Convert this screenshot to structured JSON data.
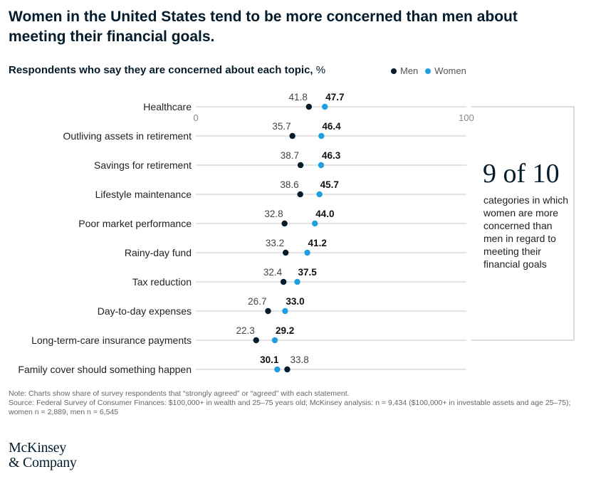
{
  "title": "Women in the United States tend to be more concerned than men about meeting their financial goals.",
  "subtitle": "Respondents who say they are concerned about each topic,",
  "subtitle_unit": "%",
  "legend": {
    "men": "Men",
    "women": "Women"
  },
  "colors": {
    "men": "#051c2c",
    "women": "#1f9fe0",
    "grid": "#c8c8c8",
    "axis": "#888888"
  },
  "callout": {
    "number": "9 of 10",
    "text": "categories in which women are more concerned than men in regard to meeting their financial goals"
  },
  "footnote": {
    "note": "Note: Charts show share of survey respondents that “strongly agreed” or “agreed” with each statement.",
    "source": "Source: Federal Survey of Consumer Finances: $100,000+ in wealth and 25–75 years old; McKinsey analysis: n = 9,434 ($100,000+ in investable assets and age 25–75); women n = 2,889, men n = 6,545"
  },
  "logo": {
    "line1": "McKinsey",
    "line2": "& Company"
  },
  "chart_data": {
    "type": "dot-plot",
    "title": "Respondents who say they are concerned about each topic, %",
    "xlim": [
      0,
      100
    ],
    "x_ticks": [
      "0",
      "100"
    ],
    "categories": [
      "Healthcare",
      "Outliving assets in retirement",
      "Savings for retirement",
      "Lifestyle maintenance",
      "Poor market performance",
      "Rainy-day fund",
      "Tax reduction",
      "Day-to-day expenses",
      "Long-term-care insurance payments",
      "Family cover should something happen"
    ],
    "series": [
      {
        "name": "Men",
        "values": [
          41.8,
          35.7,
          38.7,
          38.6,
          32.8,
          33.2,
          32.4,
          26.7,
          22.3,
          33.8
        ]
      },
      {
        "name": "Women",
        "values": [
          47.7,
          46.4,
          46.3,
          45.7,
          44.0,
          41.2,
          37.5,
          33.0,
          29.2,
          30.1
        ]
      }
    ],
    "value_labels": {
      "Men": [
        "41.8",
        "35.7",
        "38.7",
        "38.6",
        "32.8",
        "33.2",
        "32.4",
        "26.7",
        "22.3",
        "33.8"
      ],
      "Women": [
        "47.7",
        "46.4",
        "46.3",
        "45.7",
        "44.0",
        "41.2",
        "37.5",
        "33.0",
        "29.2",
        "30.1"
      ]
    },
    "legend_position": "top-right"
  }
}
